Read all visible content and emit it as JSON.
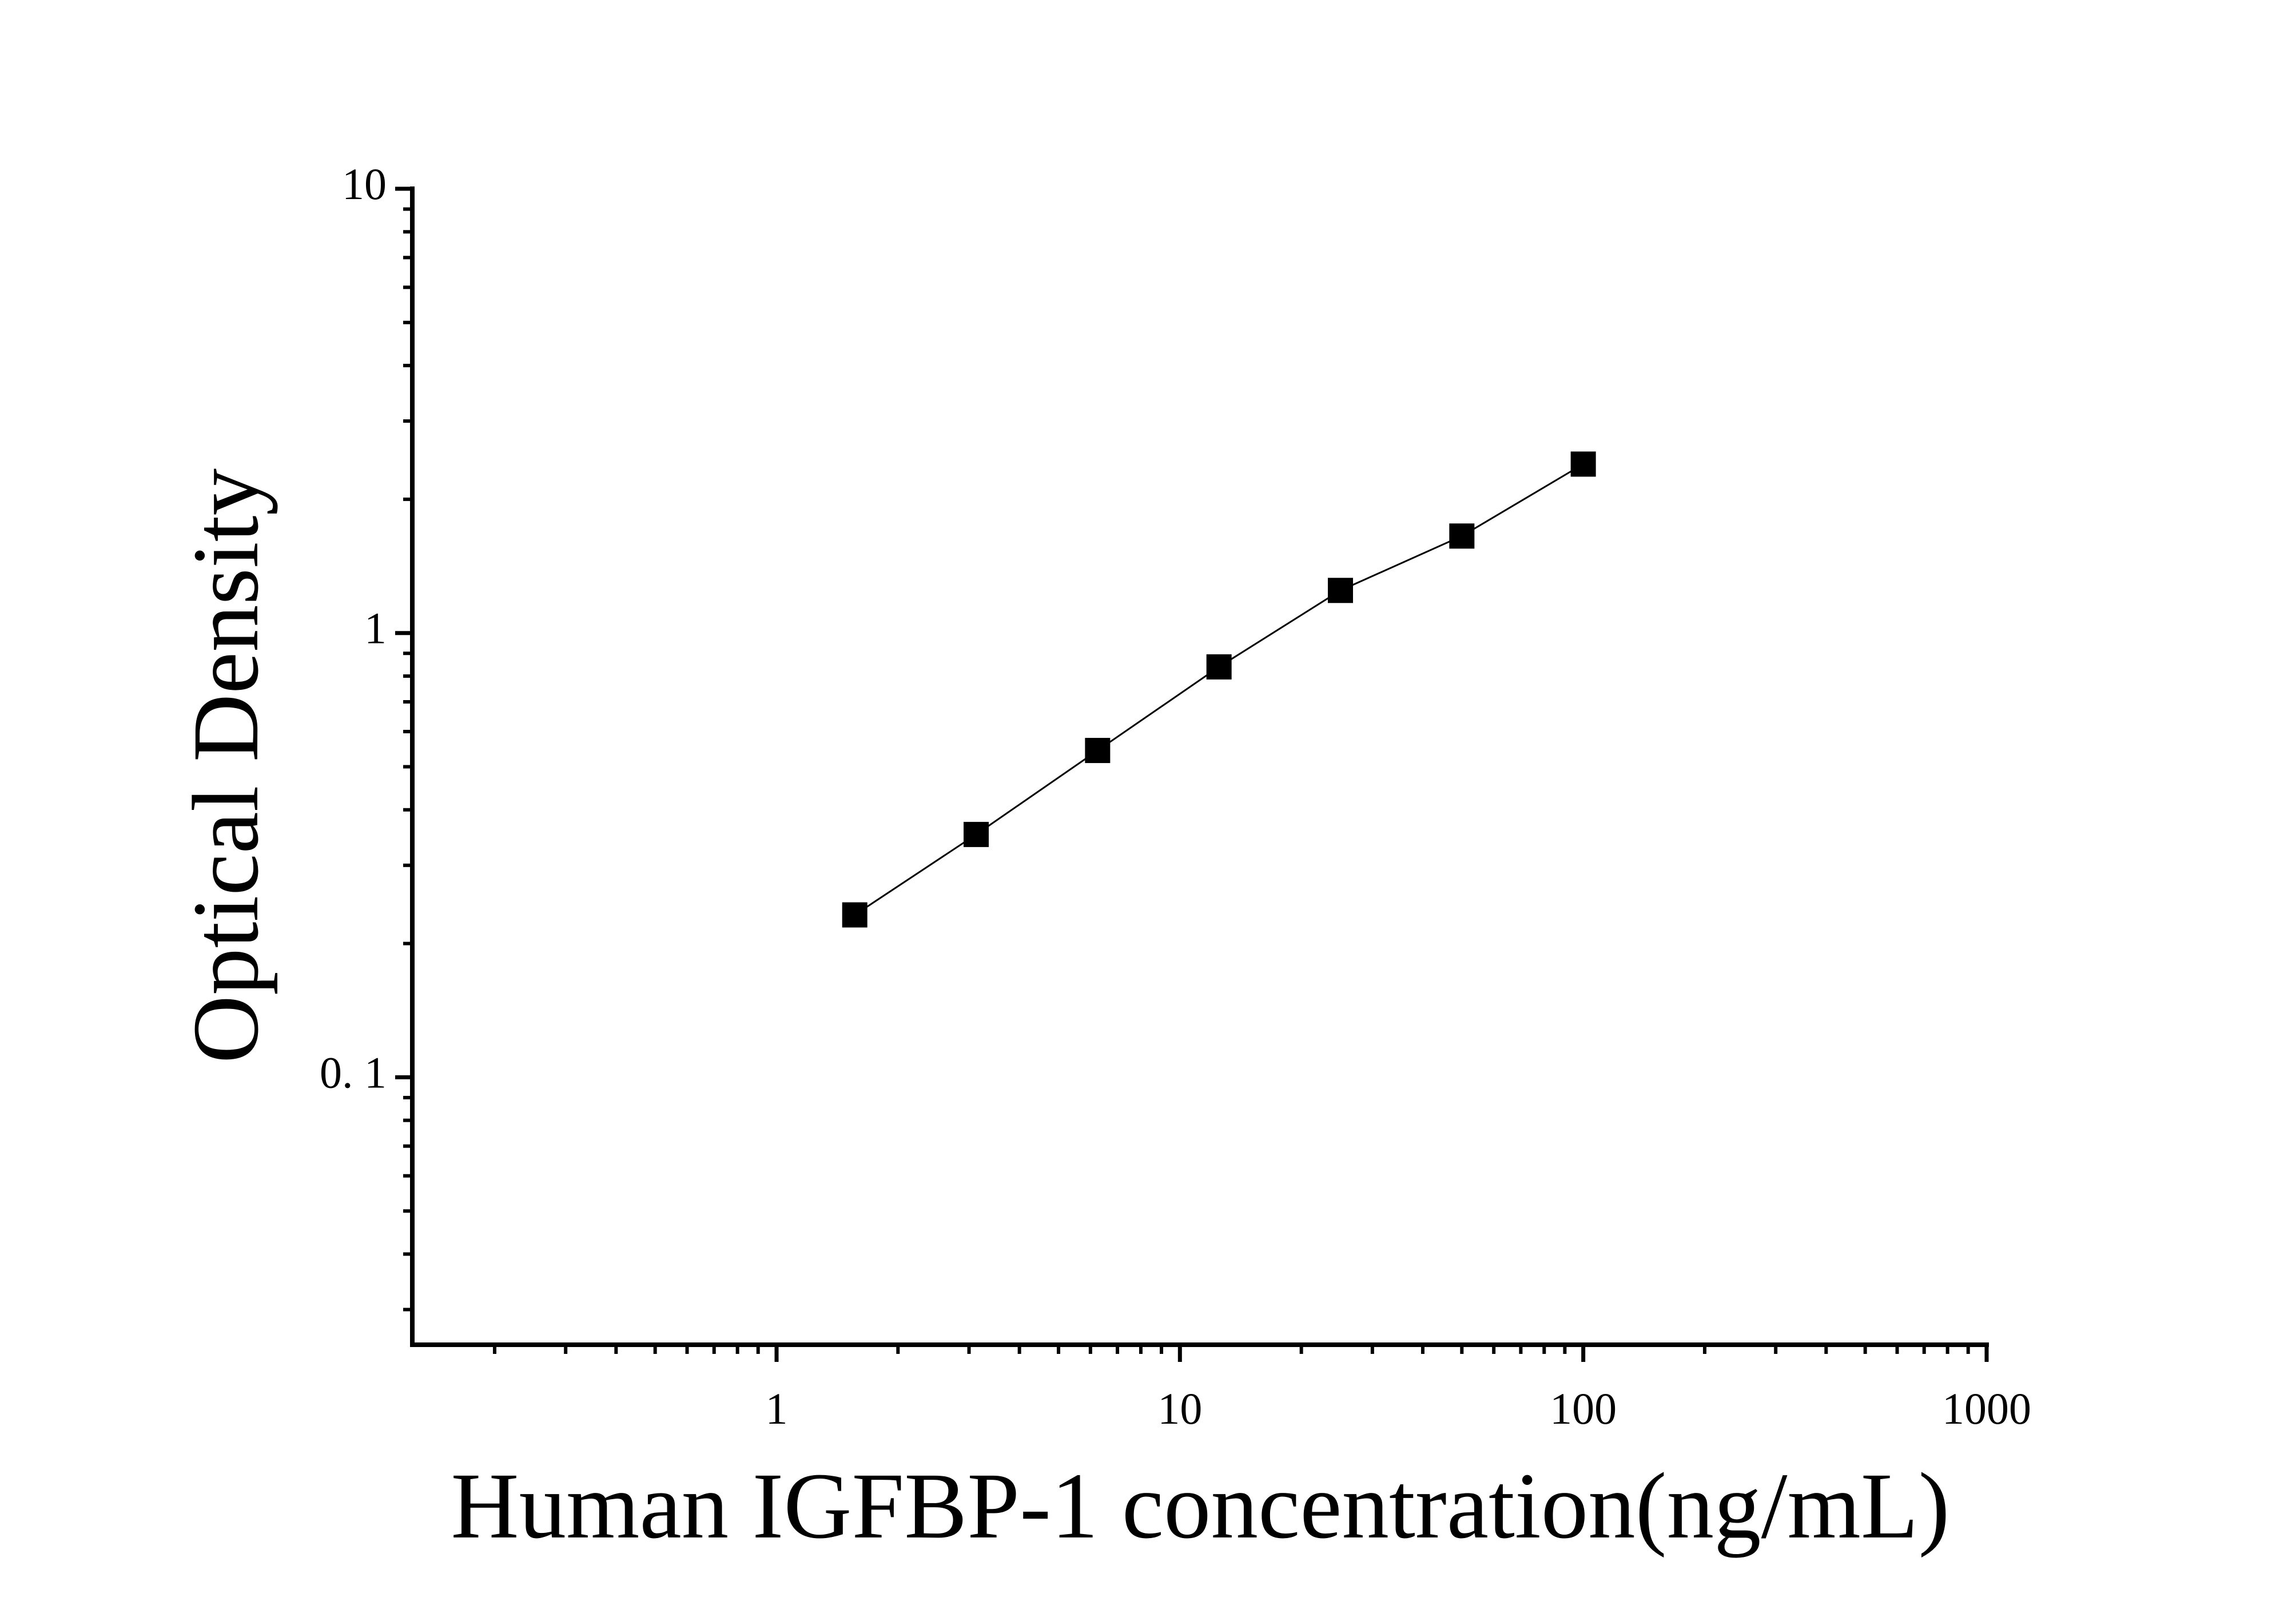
{
  "chart_data": {
    "type": "scatter",
    "xlabel": "Human IGFBP-1 concentration(ng/mL)",
    "ylabel": "Optical Density",
    "x": [
      1.5625,
      3.125,
      6.25,
      12.5,
      25,
      50,
      100
    ],
    "series": [
      {
        "color": "#000000",
        "values": [
          0.232,
          0.352,
          0.544,
          0.839,
          1.247,
          1.653,
          2.4
        ]
      }
    ],
    "xlim": [
      0.125,
      1000
    ],
    "ylim": [
      0.025,
      10
    ],
    "xticks": [
      1,
      10,
      100,
      1000
    ],
    "yticks": [
      {
        "value": 0.1,
        "label": "0. 1"
      },
      1,
      10
    ],
    "xlog": true,
    "ylog": true,
    "line": true,
    "minor_ticks": true
  }
}
